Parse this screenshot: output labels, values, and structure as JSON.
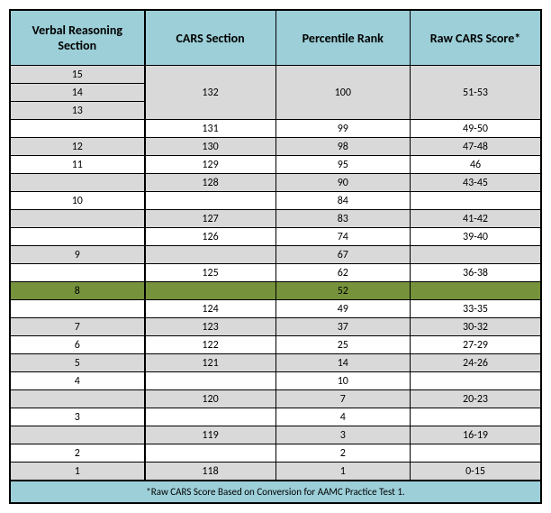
{
  "headers": {
    "col1": "Verbal Reasoning Section",
    "col2": "CARS Section",
    "col3": "Percentile Rank",
    "col4": "Raw CARS Score*"
  },
  "rows": [
    {
      "vr": "15",
      "cars": "",
      "pct": "",
      "raw": "",
      "cls": "gray",
      "c1": "col1"
    },
    {
      "vr": "14",
      "cars": "132",
      "pct": "100",
      "raw": "51-53",
      "cls": "gray",
      "c1": "col1"
    },
    {
      "vr": "13",
      "cars": "",
      "pct": "",
      "raw": "",
      "cls": "gray",
      "c1": "col1"
    },
    {
      "vr": "",
      "cars": "131",
      "pct": "99",
      "raw": "49-50",
      "cls": "white",
      "c1": "col1"
    },
    {
      "vr": "12",
      "cars": "130",
      "pct": "98",
      "raw": "47-48",
      "cls": "gray",
      "c1": "col1"
    },
    {
      "vr": "11",
      "cars": "129",
      "pct": "95",
      "raw": "46",
      "cls": "white",
      "c1": "col1"
    },
    {
      "vr": "",
      "cars": "128",
      "pct": "90",
      "raw": "43-45",
      "cls": "gray",
      "c1": "col1"
    },
    {
      "vr": "10",
      "cars": "",
      "pct": "84",
      "raw": "",
      "cls": "white",
      "c1": "col1"
    },
    {
      "vr": "",
      "cars": "127",
      "pct": "83",
      "raw": "41-42",
      "cls": "gray",
      "c1": "col1"
    },
    {
      "vr": "",
      "cars": "126",
      "pct": "74",
      "raw": "39-40",
      "cls": "white",
      "c1": "col1"
    },
    {
      "vr": "9",
      "cars": "",
      "pct": "67",
      "raw": "",
      "cls": "gray",
      "c1": "col1"
    },
    {
      "vr": "",
      "cars": "125",
      "pct": "62",
      "raw": "36-38",
      "cls": "white",
      "c1": "col1"
    },
    {
      "vr": "8",
      "cars": "",
      "pct": "52",
      "raw": "",
      "cls": "green",
      "c1": "col1"
    },
    {
      "vr": "",
      "cars": "124",
      "pct": "49",
      "raw": "33-35",
      "cls": "white",
      "c1": "col1"
    },
    {
      "vr": "7",
      "cars": "123",
      "pct": "37",
      "raw": "30-32",
      "cls": "gray",
      "c1": "col1"
    },
    {
      "vr": "6",
      "cars": "122",
      "pct": "25",
      "raw": "27-29",
      "cls": "white",
      "c1": "col1"
    },
    {
      "vr": "5",
      "cars": "121",
      "pct": "14",
      "raw": "24-26",
      "cls": "gray",
      "c1": "col1"
    },
    {
      "vr": "4",
      "cars": "",
      "pct": "10",
      "raw": "",
      "cls": "white",
      "c1": "col1"
    },
    {
      "vr": "",
      "cars": "120",
      "pct": "7",
      "raw": "20-23",
      "cls": "gray",
      "c1": "col1"
    },
    {
      "vr": "3",
      "cars": "",
      "pct": "4",
      "raw": "",
      "cls": "white",
      "c1": "col1"
    },
    {
      "vr": "",
      "cars": "119",
      "pct": "3",
      "raw": "16-19",
      "cls": "gray",
      "c1": "col1"
    },
    {
      "vr": "2",
      "cars": "",
      "pct": "2",
      "raw": "",
      "cls": "white",
      "c1": "col1"
    },
    {
      "vr": "1",
      "cars": "118",
      "pct": "1",
      "raw": "0-15",
      "cls": "gray",
      "c1": "col1"
    }
  ],
  "footnote": "*Raw CARS Score Based on Conversion for AAMC Practice Test 1.",
  "colors": {
    "header_bg": "#9ccfd8",
    "gray_bg": "#d9d9d9",
    "white_bg": "#ffffff",
    "green_bg": "#76933c",
    "border": "#000000"
  }
}
